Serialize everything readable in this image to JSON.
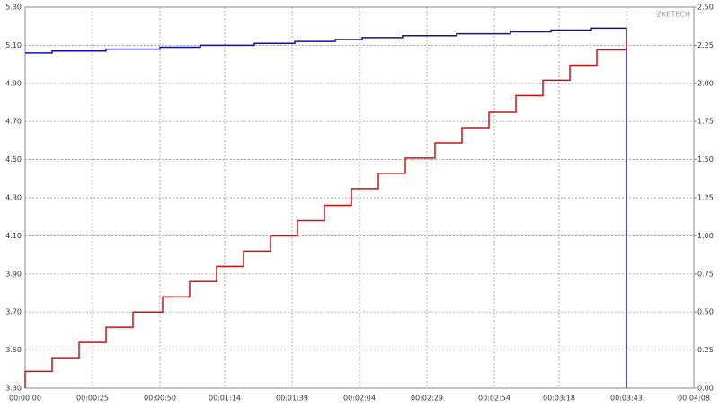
{
  "chart_data": {
    "type": "line",
    "annotation": "ZKETECH",
    "xlim": [
      0,
      248
    ],
    "xticks": [
      {
        "value": 0,
        "label": "00:00:00"
      },
      {
        "value": 25,
        "label": "00:00:25"
      },
      {
        "value": 50,
        "label": "00:00:50"
      },
      {
        "value": 74,
        "label": "00:01:14"
      },
      {
        "value": 99,
        "label": "00:01:39"
      },
      {
        "value": 124,
        "label": "00:02:04"
      },
      {
        "value": 149,
        "label": "00:02:29"
      },
      {
        "value": 174,
        "label": "00:02:54"
      },
      {
        "value": 198,
        "label": "00:03:18"
      },
      {
        "value": 223,
        "label": "00:03:43"
      },
      {
        "value": 248,
        "label": "00:04:08"
      }
    ],
    "ylim": [
      3.3,
      5.3
    ],
    "yticks": [
      {
        "value": 3.3,
        "label": "3.30"
      },
      {
        "value": 3.5,
        "label": "3.50"
      },
      {
        "value": 3.7,
        "label": "3.70"
      },
      {
        "value": 3.9,
        "label": "3.90"
      },
      {
        "value": 4.1,
        "label": "4.10"
      },
      {
        "value": 4.3,
        "label": "4.30"
      },
      {
        "value": 4.5,
        "label": "4.50"
      },
      {
        "value": 4.7,
        "label": "4.70"
      },
      {
        "value": 4.9,
        "label": "4.90"
      },
      {
        "value": 5.1,
        "label": "5.10"
      },
      {
        "value": 5.3,
        "label": "5.30"
      }
    ],
    "y2lim": [
      0,
      2.5
    ],
    "y2ticks": [
      {
        "value": 0,
        "label": "0.00"
      },
      {
        "value": 0.25,
        "label": "0.25"
      },
      {
        "value": 0.5,
        "label": "0.50"
      },
      {
        "value": 0.75,
        "label": "0.75"
      },
      {
        "value": 1,
        "label": "1.00"
      },
      {
        "value": 1.25,
        "label": "1.25"
      },
      {
        "value": 1.5,
        "label": "1.50"
      },
      {
        "value": 1.75,
        "label": "1.75"
      },
      {
        "value": 2,
        "label": "2.00"
      },
      {
        "value": 2.25,
        "label": "2.25"
      },
      {
        "value": 2.5,
        "label": "2.50"
      }
    ],
    "grid": true,
    "series": [
      {
        "color": "#1010a0",
        "x": [
          0,
          10,
          10,
          30,
          30,
          50,
          50,
          65,
          65,
          85,
          85,
          100,
          100,
          115,
          115,
          125,
          125,
          140,
          140,
          160,
          160,
          180,
          180,
          195,
          195,
          210,
          210,
          223,
          223
        ],
        "values": [
          5.06,
          5.06,
          5.07,
          5.07,
          5.08,
          5.08,
          5.09,
          5.09,
          5.1,
          5.1,
          5.11,
          5.11,
          5.12,
          5.12,
          5.13,
          5.13,
          5.14,
          5.14,
          5.15,
          5.15,
          5.16,
          5.16,
          5.17,
          5.17,
          5.18,
          5.18,
          5.19,
          5.19,
          3.3
        ]
      },
      {
        "color": "#d01010",
        "axis": "y2",
        "x": [
          0,
          0,
          10,
          10,
          20,
          20,
          30,
          30,
          40,
          40,
          51,
          51,
          61,
          61,
          71,
          71,
          81,
          81,
          91,
          91,
          101,
          101,
          111,
          111,
          121,
          121,
          131,
          131,
          141,
          141,
          152,
          152,
          162,
          162,
          172,
          172,
          182,
          182,
          192,
          192,
          202,
          202,
          212,
          212,
          223,
          223
        ],
        "values": [
          0,
          0.11,
          0.11,
          0.2,
          0.2,
          0.3,
          0.3,
          0.4,
          0.4,
          0.5,
          0.5,
          0.6,
          0.6,
          0.7,
          0.7,
          0.8,
          0.8,
          0.9,
          0.9,
          1.0,
          1.0,
          1.1,
          1.1,
          1.2,
          1.2,
          1.31,
          1.31,
          1.41,
          1.41,
          1.51,
          1.51,
          1.61,
          1.61,
          1.71,
          1.71,
          1.81,
          1.81,
          1.92,
          1.92,
          2.02,
          2.02,
          2.12,
          2.12,
          2.22,
          2.22,
          2.3
        ]
      }
    ]
  }
}
